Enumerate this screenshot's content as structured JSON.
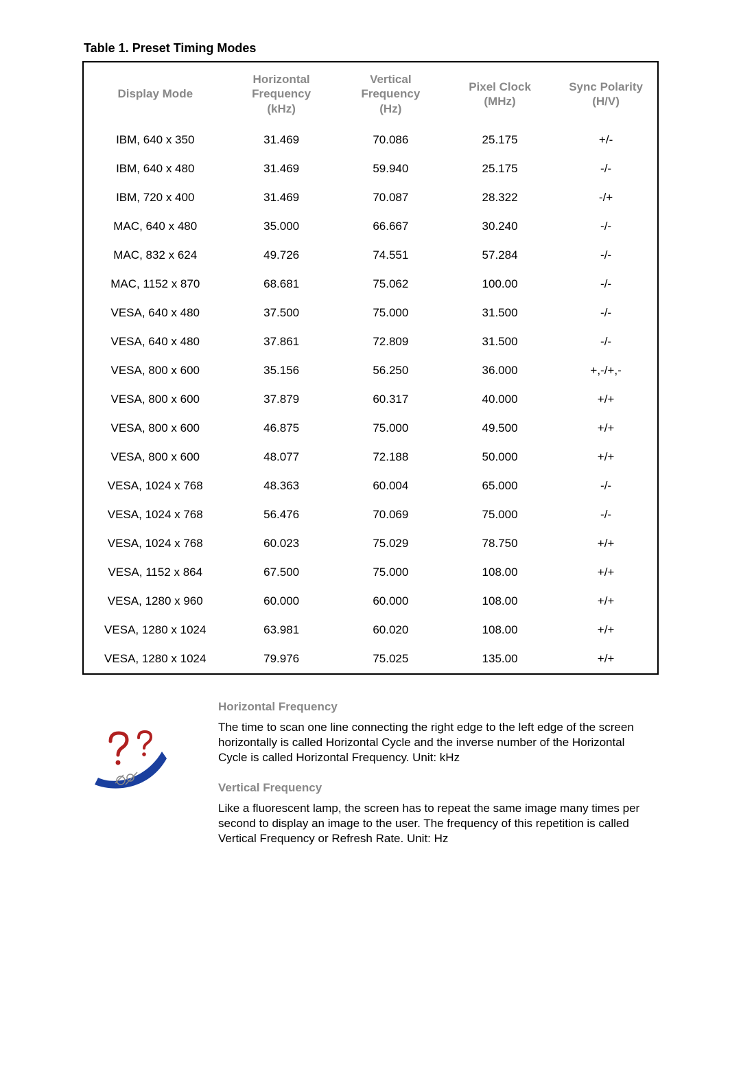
{
  "table_title": "Table 1. Preset Timing Modes",
  "columns": [
    "Display Mode",
    "Horizontal\nFrequency\n(kHz)",
    "Vertical\nFrequency\n(Hz)",
    "Pixel Clock\n(MHz)",
    "Sync Polarity\n(H/V)"
  ],
  "rows": [
    [
      "IBM, 640 x 350",
      "31.469",
      "70.086",
      "25.175",
      "+/-"
    ],
    [
      "IBM, 640 x 480",
      "31.469",
      "59.940",
      "25.175",
      "-/-"
    ],
    [
      "IBM, 720 x 400",
      "31.469",
      "70.087",
      "28.322",
      "-/+"
    ],
    [
      "MAC, 640 x 480",
      "35.000",
      "66.667",
      "30.240",
      "-/-"
    ],
    [
      "MAC, 832 x 624",
      "49.726",
      "74.551",
      "57.284",
      "-/-"
    ],
    [
      "MAC, 1152 x 870",
      "68.681",
      "75.062",
      "100.00",
      "-/-"
    ],
    [
      "VESA, 640 x 480",
      "37.500",
      "75.000",
      "31.500",
      "-/-"
    ],
    [
      "VESA, 640 x 480",
      "37.861",
      "72.809",
      "31.500",
      "-/-"
    ],
    [
      "VESA, 800 x 600",
      "35.156",
      "56.250",
      "36.000",
      "+,-/+,-"
    ],
    [
      "VESA, 800 x 600",
      "37.879",
      "60.317",
      "40.000",
      "+/+"
    ],
    [
      "VESA, 800 x 600",
      "46.875",
      "75.000",
      "49.500",
      "+/+"
    ],
    [
      "VESA, 800 x 600",
      "48.077",
      "72.188",
      "50.000",
      "+/+"
    ],
    [
      "VESA, 1024 x 768",
      "48.363",
      "60.004",
      "65.000",
      "-/-"
    ],
    [
      "VESA, 1024 x 768",
      "56.476",
      "70.069",
      "75.000",
      "-/-"
    ],
    [
      "VESA, 1024 x 768",
      "60.023",
      "75.029",
      "78.750",
      "+/+"
    ],
    [
      "VESA, 1152 x 864",
      "67.500",
      "75.000",
      "108.00",
      "+/+"
    ],
    [
      "VESA, 1280 x 960",
      "60.000",
      "60.000",
      "108.00",
      "+/+"
    ],
    [
      "VESA, 1280 x 1024",
      "63.981",
      "60.020",
      "108.00",
      "+/+"
    ],
    [
      "VESA, 1280 x 1024",
      "79.976",
      "75.025",
      "135.00",
      "+/+"
    ]
  ],
  "definitions": {
    "horizontal": {
      "heading": "Horizontal Frequency",
      "text": "The time to scan one line connecting the right edge to the left edge of the screen horizontally is called Horizontal Cycle and the inverse number of the Horizontal Cycle is called Horizontal Frequency. Unit: kHz"
    },
    "vertical": {
      "heading": "Vertical Frequency",
      "text": "Like a fluorescent lamp, the screen has to repeat the same image many times per second to display an image to the user. The frequency of this repetition is called Vertical Frequency or Refresh Rate. Unit: Hz"
    }
  },
  "style": {
    "col_widths_pct": [
      25,
      19,
      19,
      19,
      18
    ],
    "header_color": "#888888",
    "body_color": "#000000",
    "border_color": "#000000",
    "font_size_body": 17,
    "font_size_title": 18
  }
}
